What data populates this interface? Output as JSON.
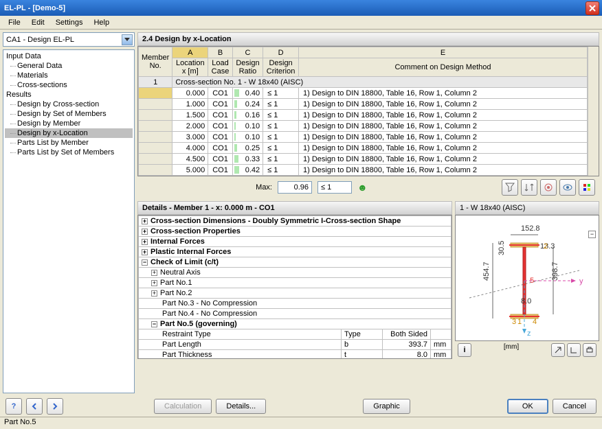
{
  "window": {
    "title": "EL-PL - [Demo-5]"
  },
  "menu": {
    "file": "File",
    "edit": "Edit",
    "settings": "Settings",
    "help": "Help"
  },
  "combo": {
    "value": "CA1 - Design EL-PL"
  },
  "tree": {
    "input_data": "Input Data",
    "general_data": "General Data",
    "materials": "Materials",
    "cross_sections": "Cross-sections",
    "results": "Results",
    "by_cross_section": "Design by Cross-section",
    "by_set": "Design by Set of Members",
    "by_member": "Design by Member",
    "by_xloc": "Design by x-Location",
    "parts_member": "Parts List by Member",
    "parts_set": "Parts List by Set of Members"
  },
  "main": {
    "header": "2.4 Design by x-Location",
    "columns": {
      "letters": [
        "A",
        "B",
        "C",
        "D",
        "E"
      ],
      "member_no": "Member\nNo.",
      "location": "Location\nx [m]",
      "load_case": "Load\nCase",
      "design_ratio": "Design\nRatio",
      "design_criterion": "Design\nCriterion",
      "comment": "Comment on Design Method"
    },
    "section_row": "Cross-section No.  1 - W 18x40 (AISC)",
    "member_id": "1",
    "rows": [
      {
        "x": "0.000",
        "lc": "CO1",
        "ratio": "0.40",
        "ratio_bar": 0.4,
        "crit": "≤ 1",
        "comment": "1) Design to DIN 18800, Table 16, Row 1, Column 2"
      },
      {
        "x": "1.000",
        "lc": "CO1",
        "ratio": "0.24",
        "ratio_bar": 0.24,
        "crit": "≤ 1",
        "comment": "1) Design to DIN 18800, Table 16, Row 1, Column 2"
      },
      {
        "x": "1.500",
        "lc": "CO1",
        "ratio": "0.16",
        "ratio_bar": 0.16,
        "crit": "≤ 1",
        "comment": "1) Design to DIN 18800, Table 16, Row 1, Column 2"
      },
      {
        "x": "2.000",
        "lc": "CO1",
        "ratio": "0.10",
        "ratio_bar": 0.1,
        "crit": "≤ 1",
        "comment": "1) Design to DIN 18800, Table 16, Row 1, Column 2"
      },
      {
        "x": "3.000",
        "lc": "CO1",
        "ratio": "0.10",
        "ratio_bar": 0.1,
        "crit": "≤ 1",
        "comment": "1) Design to DIN 18800, Table 16, Row 1, Column 2"
      },
      {
        "x": "4.000",
        "lc": "CO1",
        "ratio": "0.25",
        "ratio_bar": 0.25,
        "crit": "≤ 1",
        "comment": "1) Design to DIN 18800, Table 16, Row 1, Column 2"
      },
      {
        "x": "4.500",
        "lc": "CO1",
        "ratio": "0.33",
        "ratio_bar": 0.33,
        "crit": "≤ 1",
        "comment": "1) Design to DIN 18800, Table 16, Row 1, Column 2"
      },
      {
        "x": "5.000",
        "lc": "CO1",
        "ratio": "0.42",
        "ratio_bar": 0.42,
        "crit": "≤ 1",
        "comment": "1) Design to DIN 18800, Table 16, Row 1, Column 2"
      }
    ],
    "max": {
      "label": "Max:",
      "ratio": "0.96",
      "crit": "≤ 1"
    }
  },
  "details": {
    "header": "Details - Member 1 - x: 0.000 m - CO1",
    "cs_dim": "Cross-section Dimensions - Doubly Symmetric I-Cross-section Shape",
    "cs_prop": "Cross-section Properties",
    "int_forces": "Internal Forces",
    "pl_int_forces": "Plastic Internal Forces",
    "check_limit": "Check of Limit (c/t)",
    "neutral_axis": "Neutral Axis",
    "part1": "Part No.1",
    "part2": "Part No.2",
    "part3": "Part No.3 - No Compression",
    "part4": "Part No.4 - No Compression",
    "part5": "Part No.5 (governing)",
    "restraint_type": "Restraint Type",
    "part_length": "Part Length",
    "part_thickness": "Part Thickness",
    "col_type": "Type",
    "col_both": "Both Sided",
    "val_b": "b",
    "val_t": "t",
    "len_val": "393.7",
    "thk_val": "8.0",
    "unit": "mm"
  },
  "diagram": {
    "title": "1 - W 18x40 (AISC)",
    "unit_label": "[mm]",
    "dims": {
      "width": "152.8",
      "height": "454.7",
      "flange": "13.3",
      "web_h": "398.7",
      "web_t": "8.0",
      "h2": "30.5"
    },
    "axes": {
      "y": "y",
      "z": "z",
      "num5": "5"
    },
    "colors": {
      "section": "#e63232",
      "flange_fill": "#e6c26c",
      "axis_y": "#d84aa8",
      "axis_z": "#4aa8d8",
      "dim_line": "#666666"
    }
  },
  "buttons": {
    "calculation": "Calculation",
    "details": "Details...",
    "graphic": "Graphic",
    "ok": "OK",
    "cancel": "Cancel"
  },
  "statusbar": "Part No.5"
}
